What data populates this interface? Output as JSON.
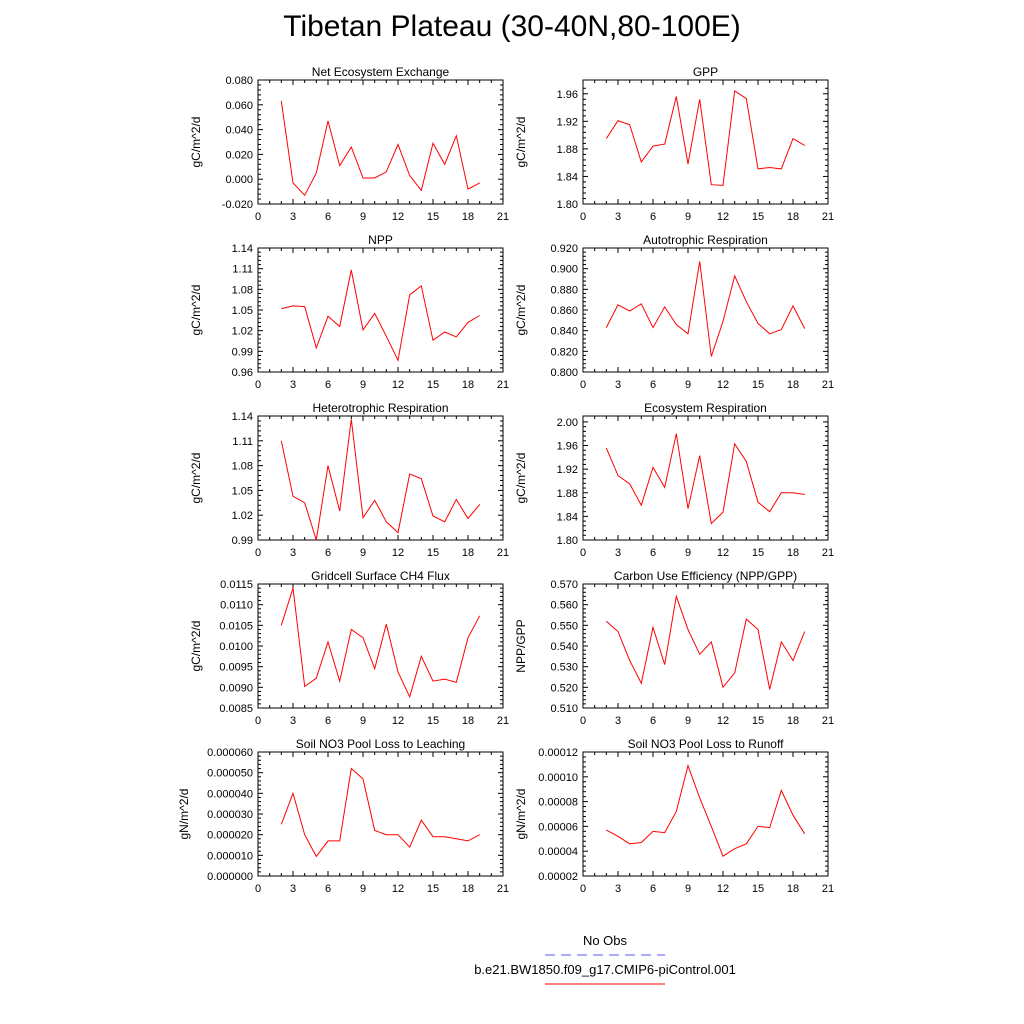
{
  "title": "Tibetan Plateau (30-40N,80-100E)",
  "colors": {
    "series": "#ff0000",
    "obs": "#5555ff",
    "axis": "#000000"
  },
  "legend": {
    "obs_label": "No Obs",
    "case_label": "b.e21.BW1850.f09_g17.CMIP6-piControl.001"
  },
  "chart_data": [
    {
      "type": "line",
      "title": "Net Ecosystem Exchange",
      "xlabel": "",
      "ylabel": "gC/m^2/d",
      "xlim": [
        0,
        21
      ],
      "xticks": [
        "0",
        "3",
        "6",
        "9",
        "12",
        "15",
        "18",
        "21"
      ],
      "ylim": [
        -0.02,
        0.08
      ],
      "yticks": [
        "-0.020",
        "0.000",
        "0.020",
        "0.040",
        "0.060",
        "0.080"
      ],
      "yminor_step": 0.004,
      "x": [
        2,
        3,
        4,
        5,
        6,
        7,
        8,
        9,
        10,
        11,
        12,
        13,
        14,
        15,
        16,
        17,
        18,
        19
      ],
      "series": [
        {
          "name": "b.e21.BW1850.f09_g17.CMIP6-piControl.001",
          "values": [
            0.063,
            -0.003,
            -0.013,
            0.005,
            0.047,
            0.011,
            0.026,
            0.001,
            0.001,
            0.006,
            0.028,
            0.003,
            -0.009,
            0.029,
            0.012,
            0.035,
            -0.008,
            -0.003
          ]
        }
      ]
    },
    {
      "type": "line",
      "title": "GPP",
      "xlabel": "",
      "ylabel": "gC/m^2/d",
      "xlim": [
        0,
        21
      ],
      "xticks": [
        "0",
        "3",
        "6",
        "9",
        "12",
        "15",
        "18",
        "21"
      ],
      "ylim": [
        1.8,
        1.98
      ],
      "yticks": [
        "1.80",
        "1.84",
        "1.88",
        "1.92",
        "1.96"
      ],
      "yminor_step": 0.008,
      "x": [
        2,
        3,
        4,
        5,
        6,
        7,
        8,
        9,
        10,
        11,
        12,
        13,
        14,
        15,
        16,
        17,
        18,
        19
      ],
      "series": [
        {
          "name": "b.e21.BW1850.f09_g17.CMIP6-piControl.001",
          "values": [
            1.895,
            1.921,
            1.915,
            1.861,
            1.884,
            1.887,
            1.956,
            1.858,
            1.952,
            1.828,
            1.827,
            1.964,
            1.953,
            1.851,
            1.853,
            1.851,
            1.895,
            1.885
          ]
        }
      ]
    },
    {
      "type": "line",
      "title": "NPP",
      "xlabel": "",
      "ylabel": "gC/m^2/d",
      "xlim": [
        0,
        21
      ],
      "xticks": [
        "0",
        "3",
        "6",
        "9",
        "12",
        "15",
        "18",
        "21"
      ],
      "ylim": [
        0.96,
        1.14
      ],
      "yticks": [
        "0.96",
        "0.99",
        "1.02",
        "1.05",
        "1.08",
        "1.11",
        "1.14"
      ],
      "yminor_step": 0.006,
      "x": [
        2,
        3,
        4,
        5,
        6,
        7,
        8,
        9,
        10,
        11,
        12,
        13,
        14,
        15,
        16,
        17,
        18,
        19
      ],
      "series": [
        {
          "name": "b.e21.BW1850.f09_g17.CMIP6-piControl.001",
          "values": [
            1.052,
            1.056,
            1.055,
            0.995,
            1.041,
            1.026,
            1.108,
            1.021,
            1.045,
            1.012,
            0.977,
            1.072,
            1.085,
            1.006,
            1.018,
            1.011,
            1.032,
            1.042
          ]
        }
      ]
    },
    {
      "type": "line",
      "title": "Autotrophic Respiration",
      "xlabel": "",
      "ylabel": "gC/m^2/d",
      "xlim": [
        0,
        21
      ],
      "xticks": [
        "0",
        "3",
        "6",
        "9",
        "12",
        "15",
        "18",
        "21"
      ],
      "ylim": [
        0.8,
        0.92
      ],
      "yticks": [
        "0.800",
        "0.820",
        "0.840",
        "0.860",
        "0.880",
        "0.900",
        "0.920"
      ],
      "yminor_step": 0.004,
      "x": [
        2,
        3,
        4,
        5,
        6,
        7,
        8,
        9,
        10,
        11,
        12,
        13,
        14,
        15,
        16,
        17,
        18,
        19
      ],
      "series": [
        {
          "name": "b.e21.BW1850.f09_g17.CMIP6-piControl.001",
          "values": [
            0.843,
            0.865,
            0.859,
            0.866,
            0.843,
            0.863,
            0.846,
            0.837,
            0.907,
            0.815,
            0.849,
            0.893,
            0.868,
            0.847,
            0.837,
            0.841,
            0.864,
            0.842
          ]
        }
      ]
    },
    {
      "type": "line",
      "title": "Heterotrophic Respiration",
      "xlabel": "",
      "ylabel": "gC/m^2/d",
      "xlim": [
        0,
        21
      ],
      "xticks": [
        "0",
        "3",
        "6",
        "9",
        "12",
        "15",
        "18",
        "21"
      ],
      "ylim": [
        0.99,
        1.14
      ],
      "yticks": [
        "0.99",
        "1.02",
        "1.05",
        "1.08",
        "1.11",
        "1.14"
      ],
      "yminor_step": 0.006,
      "x": [
        2,
        3,
        4,
        5,
        6,
        7,
        8,
        9,
        10,
        11,
        12,
        13,
        14,
        15,
        16,
        17,
        18,
        19
      ],
      "series": [
        {
          "name": "b.e21.BW1850.f09_g17.CMIP6-piControl.001",
          "values": [
            1.11,
            1.043,
            1.035,
            0.99,
            1.08,
            1.025,
            1.136,
            1.017,
            1.038,
            1.012,
            0.999,
            1.07,
            1.064,
            1.019,
            1.012,
            1.039,
            1.016,
            1.033
          ]
        }
      ]
    },
    {
      "type": "line",
      "title": "Ecosystem Respiration",
      "xlabel": "",
      "ylabel": "gC/m^2/d",
      "xlim": [
        0,
        21
      ],
      "xticks": [
        "0",
        "3",
        "6",
        "9",
        "12",
        "15",
        "18",
        "21"
      ],
      "ylim": [
        1.8,
        2.01
      ],
      "yticks": [
        "1.80",
        "1.84",
        "1.88",
        "1.92",
        "1.96",
        "2.00"
      ],
      "yminor_step": 0.008,
      "x": [
        2,
        3,
        4,
        5,
        6,
        7,
        8,
        9,
        10,
        11,
        12,
        13,
        14,
        15,
        16,
        17,
        18,
        19
      ],
      "series": [
        {
          "name": "b.e21.BW1850.f09_g17.CMIP6-piControl.001",
          "values": [
            1.956,
            1.909,
            1.895,
            1.859,
            1.923,
            1.889,
            1.98,
            1.853,
            1.943,
            1.828,
            1.847,
            1.963,
            1.933,
            1.864,
            1.848,
            1.88,
            1.88,
            1.877
          ]
        }
      ]
    },
    {
      "type": "line",
      "title": "Gridcell Surface CH4 Flux",
      "xlabel": "",
      "ylabel": "gC/m^2/d",
      "xlim": [
        0,
        21
      ],
      "xticks": [
        "0",
        "3",
        "6",
        "9",
        "12",
        "15",
        "18",
        "21"
      ],
      "ylim": [
        0.0085,
        0.0115
      ],
      "yticks": [
        "0.0085",
        "0.0090",
        "0.0095",
        "0.0100",
        "0.0105",
        "0.0110",
        "0.0115"
      ],
      "yminor_step": 0.0001,
      "x": [
        2,
        3,
        4,
        5,
        6,
        7,
        8,
        9,
        10,
        11,
        12,
        13,
        14,
        15,
        16,
        17,
        18,
        19
      ],
      "series": [
        {
          "name": "b.e21.BW1850.f09_g17.CMIP6-piControl.001",
          "values": [
            0.0105,
            0.0114,
            0.00902,
            0.00922,
            0.0101,
            0.00915,
            0.0104,
            0.0102,
            0.00945,
            0.01053,
            0.00937,
            0.00877,
            0.00975,
            0.00915,
            0.0092,
            0.00912,
            0.0102,
            0.01073
          ]
        }
      ]
    },
    {
      "type": "line",
      "title": "Carbon Use Efficiency (NPP/GPP)",
      "xlabel": "",
      "ylabel": "NPP/GPP",
      "xlim": [
        0,
        21
      ],
      "xticks": [
        "0",
        "3",
        "6",
        "9",
        "12",
        "15",
        "18",
        "21"
      ],
      "ylim": [
        0.51,
        0.57
      ],
      "yticks": [
        "0.510",
        "0.520",
        "0.530",
        "0.540",
        "0.550",
        "0.560",
        "0.570"
      ],
      "yminor_step": 0.002,
      "x": [
        2,
        3,
        4,
        5,
        6,
        7,
        8,
        9,
        10,
        11,
        12,
        13,
        14,
        15,
        16,
        17,
        18,
        19
      ],
      "series": [
        {
          "name": "b.e21.BW1850.f09_g17.CMIP6-piControl.001",
          "values": [
            0.552,
            0.547,
            0.533,
            0.522,
            0.549,
            0.531,
            0.564,
            0.548,
            0.536,
            0.542,
            0.52,
            0.527,
            0.553,
            0.548,
            0.519,
            0.542,
            0.533,
            0.547
          ]
        }
      ]
    },
    {
      "type": "line",
      "title": "Soil NO3 Pool Loss to Leaching",
      "xlabel": "",
      "ylabel": "gN/m^2/d",
      "xlim": [
        0,
        21
      ],
      "xticks": [
        "0",
        "3",
        "6",
        "9",
        "12",
        "15",
        "18",
        "21"
      ],
      "ylim": [
        0,
        6e-05
      ],
      "yticks": [
        "0.000000",
        "0.000010",
        "0.000020",
        "0.000030",
        "0.000040",
        "0.000050",
        "0.000060"
      ],
      "yminor_step": 2e-06,
      "x": [
        2,
        3,
        4,
        5,
        6,
        7,
        8,
        9,
        10,
        11,
        12,
        13,
        14,
        15,
        16,
        17,
        18,
        19
      ],
      "series": [
        {
          "name": "b.e21.BW1850.f09_g17.CMIP6-piControl.001",
          "values": [
            2.5e-05,
            4e-05,
            2e-05,
            9.5e-06,
            1.7e-05,
            1.7e-05,
            5.2e-05,
            4.7e-05,
            2.2e-05,
            2e-05,
            2e-05,
            1.4e-05,
            2.7e-05,
            1.9e-05,
            1.9e-05,
            1.8e-05,
            1.7e-05,
            2e-05
          ]
        }
      ]
    },
    {
      "type": "line",
      "title": "Soil NO3 Pool Loss to Runoff",
      "xlabel": "",
      "ylabel": "gN/m^2/d",
      "xlim": [
        0,
        21
      ],
      "xticks": [
        "0",
        "3",
        "6",
        "9",
        "12",
        "15",
        "18",
        "21"
      ],
      "ylim": [
        2e-05,
        0.00012
      ],
      "yticks": [
        "0.00002",
        "0.00004",
        "0.00006",
        "0.00008",
        "0.00010",
        "0.00012"
      ],
      "yminor_step": 4e-06,
      "x": [
        2,
        3,
        4,
        5,
        6,
        7,
        8,
        9,
        10,
        11,
        12,
        13,
        14,
        15,
        16,
        17,
        18,
        19
      ],
      "series": [
        {
          "name": "b.e21.BW1850.f09_g17.CMIP6-piControl.001",
          "values": [
            5.7e-05,
            5.2e-05,
            4.6e-05,
            4.7e-05,
            5.6e-05,
            5.5e-05,
            7.2e-05,
            0.000109,
            8.3e-05,
            6e-05,
            3.6e-05,
            4.2e-05,
            4.6e-05,
            6e-05,
            5.9e-05,
            8.9e-05,
            6.9e-05,
            5.4e-05
          ]
        }
      ]
    }
  ]
}
